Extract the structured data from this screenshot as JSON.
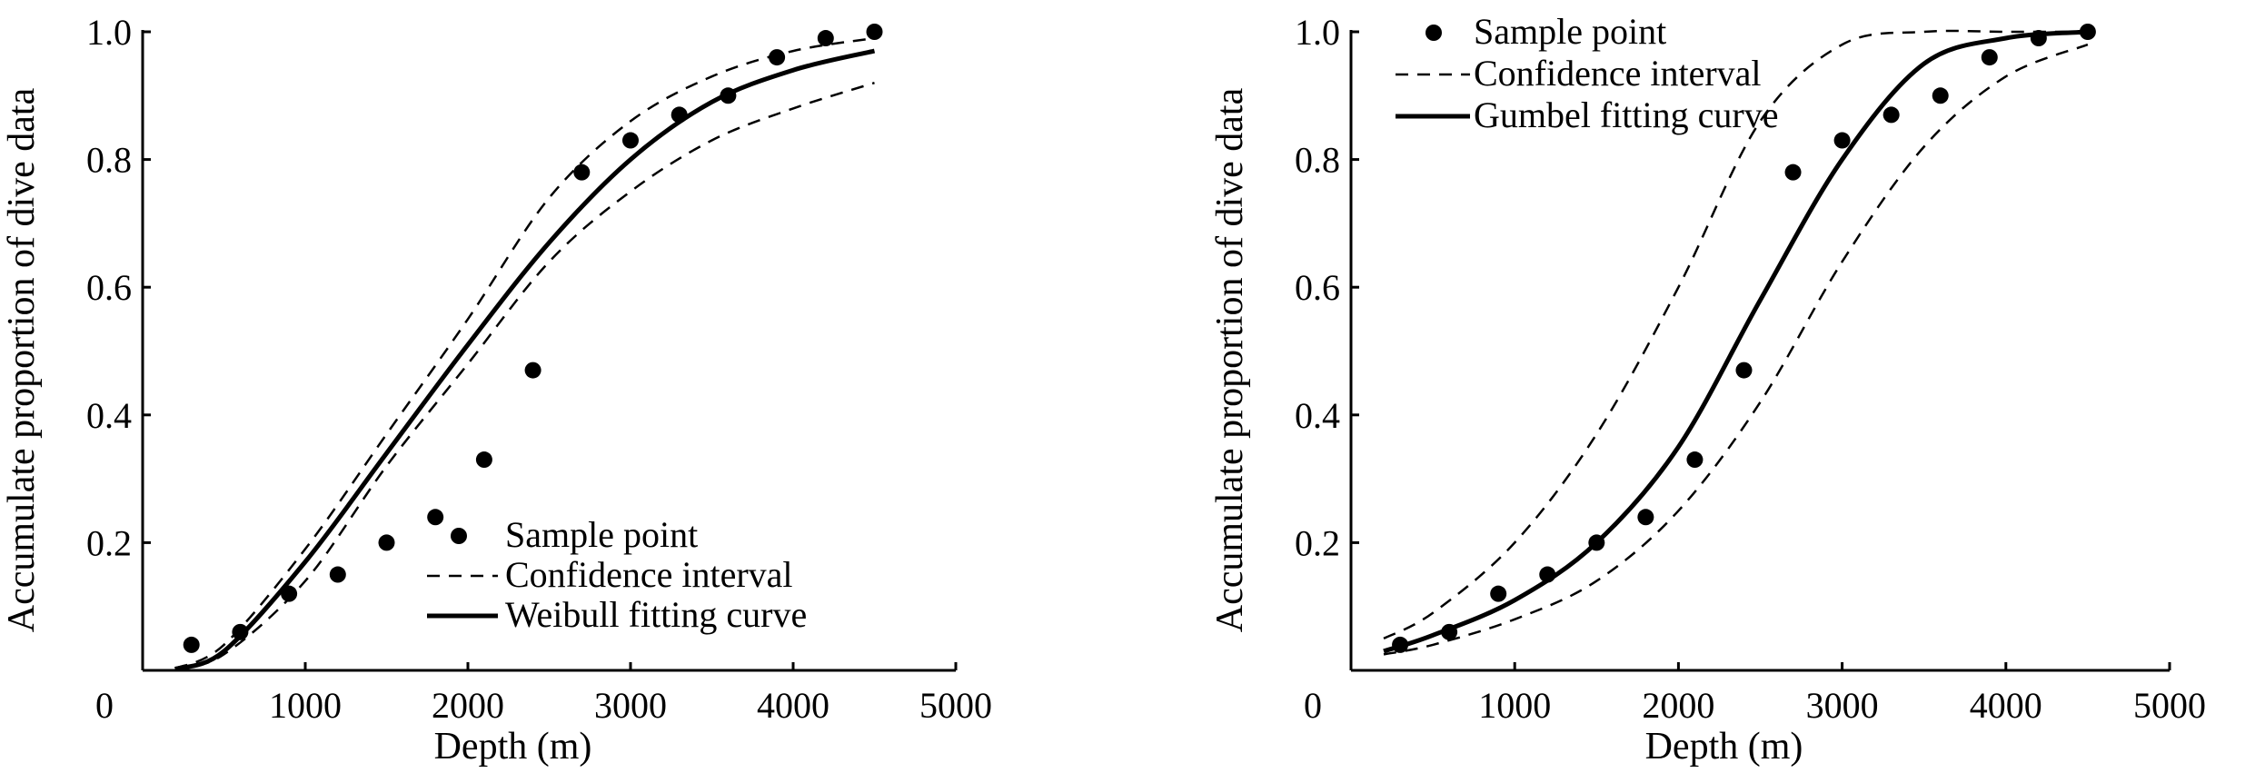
{
  "chart_data": [
    {
      "type": "scatter",
      "xlabel": "Depth (m)",
      "ylabel": "Accumulate proportion of dive data",
      "xlim": [
        0,
        5000
      ],
      "ylim": [
        0,
        1.0
      ],
      "xticks": [
        0,
        1000,
        2000,
        3000,
        4000,
        5000
      ],
      "yticks": [
        0.2,
        0.4,
        0.6,
        0.8,
        1.0
      ],
      "xtick_labels": [
        "0",
        "1000",
        "2000",
        "3000",
        "4000",
        "5000"
      ],
      "ytick_labels": [
        "0.2",
        "0.4",
        "0.6",
        "0.8",
        "1.0"
      ],
      "grid": false,
      "legend_position": "bottom-right",
      "series": [
        {
          "name": "Sample point",
          "kind": "points",
          "x": [
            300,
            600,
            900,
            1200,
            1500,
            1800,
            2100,
            2400,
            2700,
            3000,
            3300,
            3600,
            3900,
            4200,
            4500
          ],
          "y": [
            0.04,
            0.06,
            0.12,
            0.15,
            0.2,
            0.24,
            0.33,
            0.47,
            0.78,
            0.83,
            0.87,
            0.9,
            0.96,
            0.99,
            1.0
          ]
        },
        {
          "name": "Confidence interval",
          "kind": "dashed",
          "x": [
            200,
            500,
            1000,
            1500,
            2000,
            2500,
            3000,
            3500,
            4000,
            4500
          ],
          "y": [
            0.003,
            0.04,
            0.19,
            0.37,
            0.55,
            0.74,
            0.86,
            0.93,
            0.97,
            0.99
          ]
        },
        {
          "name": "",
          "kind": "dashed",
          "x": [
            200,
            500,
            1000,
            1500,
            2000,
            2500,
            3000,
            3500,
            4000,
            4500
          ],
          "y": [
            0.002,
            0.025,
            0.14,
            0.32,
            0.48,
            0.64,
            0.75,
            0.83,
            0.88,
            0.92
          ]
        },
        {
          "name": "Weibull fitting curve",
          "kind": "solid",
          "x": [
            200,
            500,
            1000,
            1500,
            2000,
            2500,
            3000,
            3500,
            4000,
            4500
          ],
          "y": [
            0.002,
            0.03,
            0.17,
            0.34,
            0.51,
            0.67,
            0.8,
            0.89,
            0.94,
            0.97
          ]
        }
      ]
    },
    {
      "type": "scatter",
      "xlabel": "Depth (m)",
      "ylabel": "Accumulate proportion of dive data",
      "xlim": [
        0,
        5000
      ],
      "ylim": [
        0,
        1.0
      ],
      "xticks": [
        0,
        1000,
        2000,
        3000,
        4000,
        5000
      ],
      "yticks": [
        0.2,
        0.4,
        0.6,
        0.8,
        1.0
      ],
      "xtick_labels": [
        "0",
        "1000",
        "2000",
        "3000",
        "4000",
        "5000"
      ],
      "ytick_labels": [
        "0.2",
        "0.4",
        "0.6",
        "0.8",
        "1.0"
      ],
      "grid": false,
      "legend_position": "top-left",
      "series": [
        {
          "name": "Sample point",
          "kind": "points",
          "x": [
            300,
            600,
            900,
            1200,
            1500,
            1800,
            2100,
            2400,
            2700,
            3000,
            3300,
            3600,
            3900,
            4200,
            4500
          ],
          "y": [
            0.04,
            0.06,
            0.12,
            0.15,
            0.2,
            0.24,
            0.33,
            0.47,
            0.78,
            0.83,
            0.87,
            0.9,
            0.96,
            0.99,
            1.0
          ]
        },
        {
          "name": "Confidence interval",
          "kind": "dashed",
          "x": [
            200,
            500,
            1000,
            1500,
            2000,
            2500,
            3000,
            3500,
            4000,
            4500
          ],
          "y": [
            0.05,
            0.09,
            0.2,
            0.37,
            0.6,
            0.86,
            0.98,
            1.0,
            1.0,
            1.0
          ]
        },
        {
          "name": "",
          "kind": "dashed",
          "x": [
            200,
            500,
            1000,
            1500,
            2000,
            2500,
            3000,
            3500,
            4000,
            4500
          ],
          "y": [
            0.025,
            0.04,
            0.08,
            0.14,
            0.25,
            0.42,
            0.64,
            0.82,
            0.93,
            0.98
          ]
        },
        {
          "name": "Gumbel fitting curve",
          "kind": "solid",
          "x": [
            200,
            500,
            1000,
            1500,
            2000,
            2500,
            3000,
            3500,
            4000,
            4500
          ],
          "y": [
            0.03,
            0.055,
            0.11,
            0.2,
            0.35,
            0.58,
            0.8,
            0.95,
            0.99,
            1.0
          ]
        }
      ]
    }
  ]
}
